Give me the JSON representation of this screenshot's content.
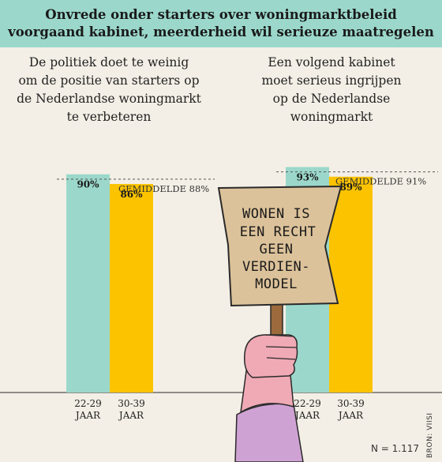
{
  "header": {
    "title_line1": "Onvrede onder starters over woningmarktbeleid",
    "title_line2": "voorgaand kabinet, meerderheid wil serieuze maatregelen"
  },
  "colors": {
    "background": "#f4efe6",
    "title_bar": "#9bd8cb",
    "bar_22_29": "#9bd8cb",
    "bar_30_39": "#fbc300",
    "sign_board": "#dcc29a",
    "sign_stick": "#9c6a3c",
    "arm": "#f0aab5",
    "sleeve": "#cfa2d4"
  },
  "chart_data": [
    {
      "type": "bar",
      "title": "De politiek doet te weinig om de positie van starters op de Nederlandse woningmarkt te verbeteren",
      "categories": [
        "22-29 JAAR",
        "30-39 JAAR"
      ],
      "category_lines": [
        [
          "22-29",
          "JAAR"
        ],
        [
          "30-39",
          "JAAR"
        ]
      ],
      "values": [
        90,
        86
      ],
      "value_labels": [
        "90%",
        "86%"
      ],
      "average": 88,
      "average_label": "GEMIDDELDE 88%",
      "ylim": [
        0,
        100
      ]
    },
    {
      "type": "bar",
      "title": "Een volgend kabinet moet serieus ingrijpen op de Nederlandse woningmarkt",
      "categories": [
        "22-29 JAAR",
        "30-39 JAAR"
      ],
      "category_lines": [
        [
          "22-29",
          "JAAR"
        ],
        [
          "30-39",
          "JAAR"
        ]
      ],
      "values": [
        93,
        89
      ],
      "value_labels": [
        "93%",
        "89%"
      ],
      "average": 91,
      "average_label": "GEMIDDELDE 91%",
      "ylim": [
        0,
        100
      ]
    }
  ],
  "panels": [
    {
      "heading_lines": [
        "De politiek doet te weinig",
        "om de positie van starters op",
        "de Nederlandse woningmarkt",
        "te verbeteren"
      ]
    },
    {
      "heading_lines": [
        "Een volgend kabinet",
        "moet serieus ingrijpen",
        "op de Nederlandse",
        "woningmarkt"
      ]
    }
  ],
  "sign": {
    "lines": [
      "WONEN IS",
      "EEN RECHT",
      "GEEN",
      "VERDIEN-",
      "MODEL"
    ]
  },
  "footer": {
    "sample_size": "N = 1.117",
    "source": "BRON: VIISI"
  }
}
